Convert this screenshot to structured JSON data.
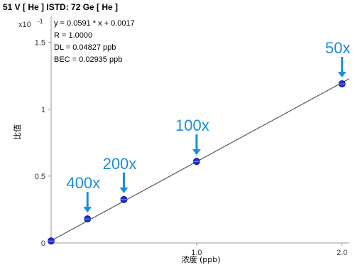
{
  "chart_data": {
    "type": "scatter",
    "title": "51 V [ He ] ISTD: 72 Ge [ He ]",
    "xlabel": "浓度 (ppb)",
    "ylabel": "比值",
    "y_multiplier": "x10",
    "y_multiplier_exp": "-1",
    "xlim": [
      0,
      2.05
    ],
    "ylim": [
      0,
      1.7
    ],
    "x_ticks": [
      1.0,
      2.0
    ],
    "x_tick_labels": [
      "1.0",
      "2.0"
    ],
    "y_ticks": [
      0,
      0.5,
      1,
      1.5
    ],
    "y_tick_labels": [
      "0",
      "0.5",
      "1",
      "1.5"
    ],
    "points": [
      {
        "x": 0.0,
        "y": 0.015
      },
      {
        "x": 0.25,
        "y": 0.18
      },
      {
        "x": 0.5,
        "y": 0.325
      },
      {
        "x": 1.0,
        "y": 0.61
      },
      {
        "x": 2.0,
        "y": 1.19
      }
    ],
    "fit": {
      "slope": 0.591,
      "intercept": 0.017
    },
    "stats": [
      "y = 0.0591 * x  + 0.0017",
      "R =  1.0000",
      "DL = 0.04827 ppb",
      "BEC = 0.02935 ppb"
    ],
    "callouts": [
      {
        "label": "400x",
        "x": 0.25,
        "y": 0.18
      },
      {
        "label": "200x",
        "x": 0.5,
        "y": 0.325
      },
      {
        "label": "100x",
        "x": 1.0,
        "y": 0.61
      },
      {
        "label": "50x",
        "x": 2.0,
        "y": 1.19
      }
    ],
    "colors": {
      "point": "#1f2fd1",
      "fit_line": "#3a3a3a",
      "callout": "#1a8fd6",
      "axis": "#999999"
    }
  }
}
